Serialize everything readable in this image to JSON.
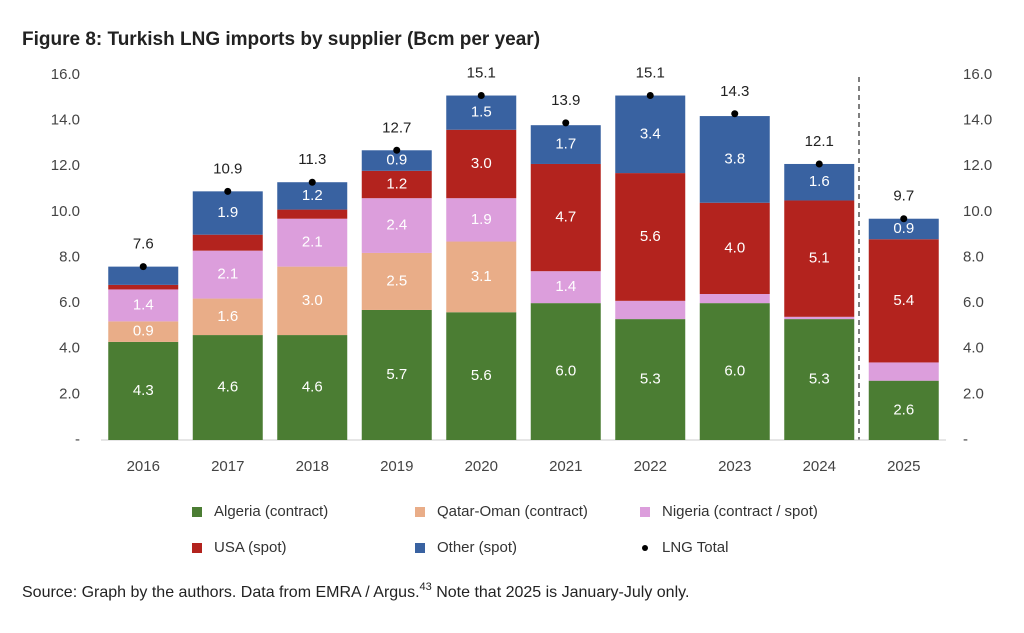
{
  "chart_data": {
    "type": "stacked-bar",
    "title": "Figure 8: Turkish LNG imports by supplier (Bcm per year)",
    "categories": [
      "2016",
      "2017",
      "2018",
      "2019",
      "2020",
      "2021",
      "2022",
      "2023",
      "2024",
      "2025"
    ],
    "series": [
      {
        "name": "Algeria (contract)",
        "color": "#4b7d33",
        "values": [
          4.3,
          4.6,
          4.6,
          5.7,
          5.6,
          6.0,
          5.3,
          6.0,
          5.3,
          2.6
        ],
        "value_labels": [
          "4.3",
          "4.6",
          "4.6",
          "5.7",
          "5.6",
          "6.0",
          "5.3",
          "6.0",
          "5.3",
          "2.6"
        ]
      },
      {
        "name": "Qatar-Oman (contract)",
        "color": "#e9ad88",
        "values": [
          0.9,
          1.6,
          3.0,
          2.5,
          3.1,
          0,
          0,
          0,
          0,
          0
        ],
        "value_labels": [
          "0.9",
          "1.6",
          "3.0",
          "2.5",
          "3.1",
          null,
          null,
          null,
          null,
          null
        ]
      },
      {
        "name": "Nigeria (contract / spot)",
        "color": "#dc9edc",
        "values": [
          1.4,
          2.1,
          2.1,
          2.4,
          1.9,
          1.4,
          0.8,
          0.4,
          0.1,
          0.8
        ],
        "value_labels": [
          "1.4",
          "2.1",
          "2.1",
          "2.4",
          "1.9",
          "1.4",
          null,
          null,
          null,
          null
        ]
      },
      {
        "name": "USA (spot)",
        "color": "#b3231e",
        "values": [
          0.2,
          0.7,
          0.4,
          1.2,
          3.0,
          4.7,
          5.6,
          4.0,
          5.1,
          5.4
        ],
        "value_labels": [
          null,
          null,
          null,
          "1.2",
          "3.0",
          "4.7",
          "5.6",
          "4.0",
          "5.1",
          "5.4"
        ]
      },
      {
        "name": "Other (spot)",
        "color": "#3962a1",
        "values": [
          0.8,
          1.9,
          1.2,
          0.9,
          1.5,
          1.7,
          3.4,
          3.8,
          1.6,
          0.9
        ],
        "value_labels": [
          null,
          "1.9",
          "1.2",
          "0.9",
          "1.5",
          "1.7",
          "3.4",
          "3.8",
          "1.6",
          "0.9"
        ]
      }
    ],
    "total": {
      "name": "LNG Total",
      "color": "#000000",
      "values": [
        7.6,
        10.9,
        11.3,
        12.7,
        15.1,
        13.9,
        15.1,
        14.3,
        12.1,
        9.7
      ]
    },
    "ylim": [
      0,
      16
    ],
    "yticks": [
      {
        "value": 0,
        "label": "-"
      },
      {
        "value": 2,
        "label": "2.0"
      },
      {
        "value": 4,
        "label": "4.0"
      },
      {
        "value": 6,
        "label": "6.0"
      },
      {
        "value": 8,
        "label": "8.0"
      },
      {
        "value": 10,
        "label": "10.0"
      },
      {
        "value": 12,
        "label": "12.0"
      },
      {
        "value": 14,
        "label": "14.0"
      },
      {
        "value": 16,
        "label": "16.0"
      }
    ],
    "y2lim": [
      0,
      16
    ],
    "y2ticks": [
      {
        "value": 0,
        "label": "-"
      },
      {
        "value": 2,
        "label": "2.0"
      },
      {
        "value": 4,
        "label": "4.0"
      },
      {
        "value": 6,
        "label": "6.0"
      },
      {
        "value": 8,
        "label": "8.0"
      },
      {
        "value": 10,
        "label": "10.0"
      },
      {
        "value": 12,
        "label": "12.0"
      },
      {
        "value": 14,
        "label": "14.0"
      },
      {
        "value": 16,
        "label": "16.0"
      }
    ],
    "grid": false,
    "legend": "bottom",
    "source": {
      "text": "Source: Graph by the authors. Data from EMRA / Argus.",
      "superscript": "43",
      "note": " Note that 2025 is January-July only."
    }
  }
}
